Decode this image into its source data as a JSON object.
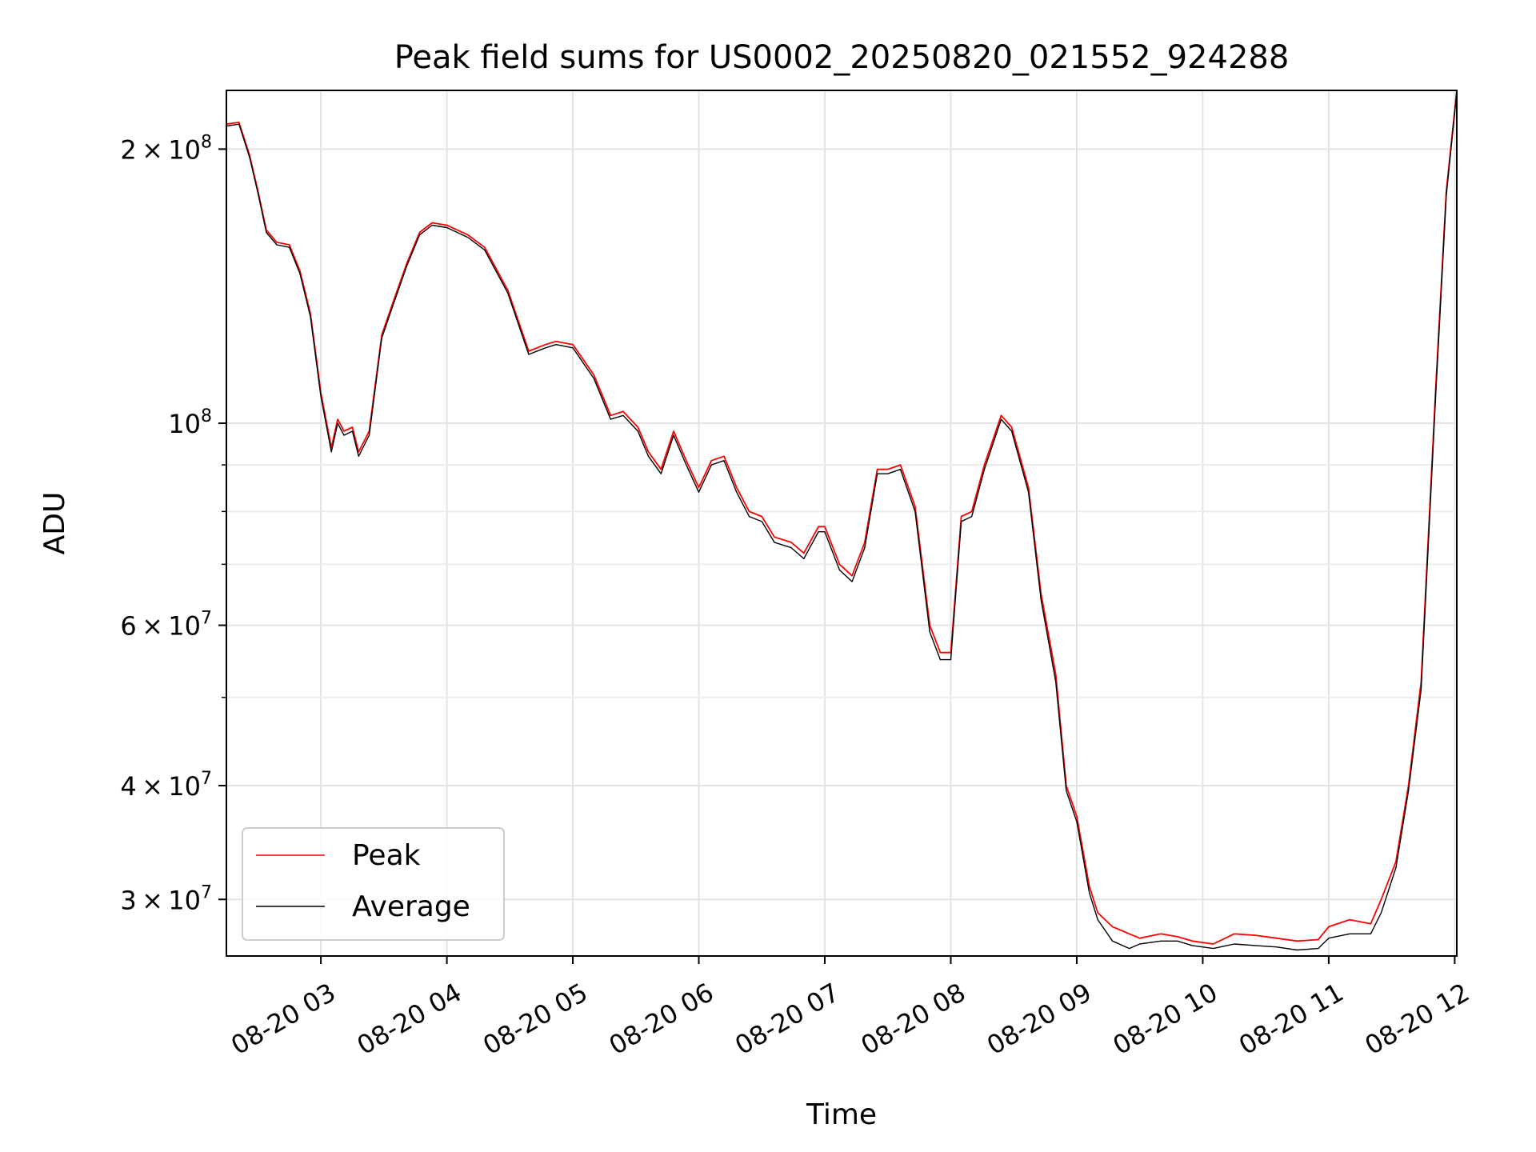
{
  "chart_data": {
    "type": "line",
    "title": "Peak field sums for US0002_20250820_021552_924288",
    "xlabel": "Time",
    "ylabel": "ADU",
    "yscale": "log",
    "xlim": [
      "2025-08-20 02:15",
      "2025-08-20 12:01"
    ],
    "ylim": [
      26000000,
      232000000
    ],
    "grid": true,
    "legend_position": "lower-left",
    "x_tick_labels": [
      "08-20 03",
      "08-20 04",
      "08-20 05",
      "08-20 06",
      "08-20 07",
      "08-20 08",
      "08-20 09",
      "08-20 10",
      "08-20 11",
      "08-20 12"
    ],
    "x_tick_values": [
      "2025-08-20 03:00",
      "2025-08-20 04:00",
      "2025-08-20 05:00",
      "2025-08-20 06:00",
      "2025-08-20 07:00",
      "2025-08-20 08:00",
      "2025-08-20 09:00",
      "2025-08-20 10:00",
      "2025-08-20 11:00",
      "2025-08-20 12:00"
    ],
    "y_ticks": [
      {
        "value": 30000000,
        "mantissa": "3",
        "base": "10",
        "exponent": "7"
      },
      {
        "value": 40000000,
        "mantissa": "4",
        "base": "10",
        "exponent": "7"
      },
      {
        "value": 60000000,
        "mantissa": "6",
        "base": "10",
        "exponent": "7"
      },
      {
        "value": 100000000,
        "mantissa": "",
        "base": "10",
        "exponent": "8"
      },
      {
        "value": 200000000,
        "mantissa": "2",
        "base": "10",
        "exponent": "8"
      }
    ],
    "y_minor_ticks": [
      50000000,
      70000000,
      80000000,
      90000000
    ],
    "series": [
      {
        "name": "Peak",
        "color": "#ff0000",
        "x": [
          "2025-08-20 02:15",
          "2025-08-20 02:21",
          "2025-08-20 02:26",
          "2025-08-20 02:30",
          "2025-08-20 02:34",
          "2025-08-20 02:39",
          "2025-08-20 02:45",
          "2025-08-20 02:50",
          "2025-08-20 02:55",
          "2025-08-20 03:00",
          "2025-08-20 03:05",
          "2025-08-20 03:08",
          "2025-08-20 03:11",
          "2025-08-20 03:15",
          "2025-08-20 03:18",
          "2025-08-20 03:23",
          "2025-08-20 03:29",
          "2025-08-20 03:34",
          "2025-08-20 03:41",
          "2025-08-20 03:47",
          "2025-08-20 03:53",
          "2025-08-20 04:00",
          "2025-08-20 04:10",
          "2025-08-20 04:18",
          "2025-08-20 04:29",
          "2025-08-20 04:39",
          "2025-08-20 04:47",
          "2025-08-20 04:52",
          "2025-08-20 05:00",
          "2025-08-20 05:10",
          "2025-08-20 05:18",
          "2025-08-20 05:24",
          "2025-08-20 05:31",
          "2025-08-20 05:36",
          "2025-08-20 05:42",
          "2025-08-20 05:48",
          "2025-08-20 05:54",
          "2025-08-20 06:00",
          "2025-08-20 06:06",
          "2025-08-20 06:12",
          "2025-08-20 06:18",
          "2025-08-20 06:24",
          "2025-08-20 06:30",
          "2025-08-20 06:36",
          "2025-08-20 06:44",
          "2025-08-20 06:50",
          "2025-08-20 06:57",
          "2025-08-20 07:00",
          "2025-08-20 07:07",
          "2025-08-20 07:13",
          "2025-08-20 07:19",
          "2025-08-20 07:25",
          "2025-08-20 07:30",
          "2025-08-20 07:36",
          "2025-08-20 07:43",
          "2025-08-20 07:50",
          "2025-08-20 07:55",
          "2025-08-20 08:00",
          "2025-08-20 08:05",
          "2025-08-20 08:10",
          "2025-08-20 08:16",
          "2025-08-20 08:24",
          "2025-08-20 08:29",
          "2025-08-20 08:37",
          "2025-08-20 08:43",
          "2025-08-20 08:50",
          "2025-08-20 08:55",
          "2025-08-20 09:00",
          "2025-08-20 09:06",
          "2025-08-20 09:10",
          "2025-08-20 09:17",
          "2025-08-20 09:25",
          "2025-08-20 09:30",
          "2025-08-20 09:40",
          "2025-08-20 09:48",
          "2025-08-20 09:55",
          "2025-08-20 10:05",
          "2025-08-20 10:15",
          "2025-08-20 10:25",
          "2025-08-20 10:35",
          "2025-08-20 10:45",
          "2025-08-20 10:55",
          "2025-08-20 11:00",
          "2025-08-20 11:10",
          "2025-08-20 11:20",
          "2025-08-20 11:25",
          "2025-08-20 11:32",
          "2025-08-20 11:38",
          "2025-08-20 11:44",
          "2025-08-20 11:51",
          "2025-08-20 11:56",
          "2025-08-20 12:01"
        ],
        "values": [
          213000000,
          214000000,
          197000000,
          180000000,
          163000000,
          158000000,
          157000000,
          147000000,
          132000000,
          108000000,
          94000000,
          101000000,
          98000000,
          99000000,
          93000000,
          98000000,
          125000000,
          135000000,
          150000000,
          162000000,
          166000000,
          165000000,
          161000000,
          156000000,
          140000000,
          120000000,
          122000000,
          123000000,
          122000000,
          113000000,
          102000000,
          103000000,
          99000000,
          93000000,
          89000000,
          98000000,
          91000000,
          85000000,
          91000000,
          92000000,
          85000000,
          80000000,
          79000000,
          75000000,
          74000000,
          72000000,
          77000000,
          77000000,
          70000000,
          68000000,
          74000000,
          89000000,
          89000000,
          90000000,
          81000000,
          60000000,
          56000000,
          56000000,
          79000000,
          80000000,
          90000000,
          102000000,
          99000000,
          85000000,
          65000000,
          53000000,
          40000000,
          37000000,
          31000000,
          29000000,
          28000000,
          27500000,
          27200000,
          27500000,
          27300000,
          27000000,
          26800000,
          27500000,
          27400000,
          27200000,
          27000000,
          27100000,
          28000000,
          28500000,
          28200000,
          30000000,
          33000000,
          40000000,
          52000000,
          110000000,
          180000000,
          232000000
        ]
      },
      {
        "name": "Average",
        "color": "#000000",
        "x": [
          "2025-08-20 02:15",
          "2025-08-20 02:21",
          "2025-08-20 02:26",
          "2025-08-20 02:30",
          "2025-08-20 02:34",
          "2025-08-20 02:39",
          "2025-08-20 02:45",
          "2025-08-20 02:50",
          "2025-08-20 02:55",
          "2025-08-20 03:00",
          "2025-08-20 03:05",
          "2025-08-20 03:08",
          "2025-08-20 03:11",
          "2025-08-20 03:15",
          "2025-08-20 03:18",
          "2025-08-20 03:23",
          "2025-08-20 03:29",
          "2025-08-20 03:34",
          "2025-08-20 03:41",
          "2025-08-20 03:47",
          "2025-08-20 03:53",
          "2025-08-20 04:00",
          "2025-08-20 04:10",
          "2025-08-20 04:18",
          "2025-08-20 04:29",
          "2025-08-20 04:39",
          "2025-08-20 04:47",
          "2025-08-20 04:52",
          "2025-08-20 05:00",
          "2025-08-20 05:10",
          "2025-08-20 05:18",
          "2025-08-20 05:24",
          "2025-08-20 05:31",
          "2025-08-20 05:36",
          "2025-08-20 05:42",
          "2025-08-20 05:48",
          "2025-08-20 05:54",
          "2025-08-20 06:00",
          "2025-08-20 06:06",
          "2025-08-20 06:12",
          "2025-08-20 06:18",
          "2025-08-20 06:24",
          "2025-08-20 06:30",
          "2025-08-20 06:36",
          "2025-08-20 06:44",
          "2025-08-20 06:50",
          "2025-08-20 06:57",
          "2025-08-20 07:00",
          "2025-08-20 07:07",
          "2025-08-20 07:13",
          "2025-08-20 07:19",
          "2025-08-20 07:25",
          "2025-08-20 07:30",
          "2025-08-20 07:36",
          "2025-08-20 07:43",
          "2025-08-20 07:50",
          "2025-08-20 07:55",
          "2025-08-20 08:00",
          "2025-08-20 08:05",
          "2025-08-20 08:10",
          "2025-08-20 08:16",
          "2025-08-20 08:24",
          "2025-08-20 08:29",
          "2025-08-20 08:37",
          "2025-08-20 08:43",
          "2025-08-20 08:50",
          "2025-08-20 08:55",
          "2025-08-20 09:00",
          "2025-08-20 09:06",
          "2025-08-20 09:10",
          "2025-08-20 09:17",
          "2025-08-20 09:25",
          "2025-08-20 09:30",
          "2025-08-20 09:40",
          "2025-08-20 09:48",
          "2025-08-20 09:55",
          "2025-08-20 10:05",
          "2025-08-20 10:15",
          "2025-08-20 10:25",
          "2025-08-20 10:35",
          "2025-08-20 10:45",
          "2025-08-20 10:55",
          "2025-08-20 11:00",
          "2025-08-20 11:10",
          "2025-08-20 11:20",
          "2025-08-20 11:25",
          "2025-08-20 11:32",
          "2025-08-20 11:38",
          "2025-08-20 11:44",
          "2025-08-20 11:51",
          "2025-08-20 11:56",
          "2025-08-20 12:01"
        ],
        "values": [
          212000000,
          213000000,
          196000000,
          179000000,
          162000000,
          157000000,
          156000000,
          146000000,
          131000000,
          107000000,
          93000000,
          100000000,
          97000000,
          98000000,
          92000000,
          97000000,
          124000000,
          134000000,
          149000000,
          161000000,
          165000000,
          164000000,
          160000000,
          155000000,
          139000000,
          119000000,
          121000000,
          122000000,
          121000000,
          112000000,
          101000000,
          102000000,
          98000000,
          92000000,
          88000000,
          97000000,
          90000000,
          84000000,
          90000000,
          91000000,
          84000000,
          79000000,
          78000000,
          74000000,
          73000000,
          71000000,
          76000000,
          76000000,
          69000000,
          67000000,
          73000000,
          88000000,
          88000000,
          89000000,
          80000000,
          59000000,
          55000000,
          55000000,
          78000000,
          79000000,
          89000000,
          101000000,
          98000000,
          84000000,
          64000000,
          52000000,
          39500000,
          36500000,
          30500000,
          28500000,
          27000000,
          26500000,
          26800000,
          27000000,
          27000000,
          26700000,
          26500000,
          26800000,
          26700000,
          26600000,
          26400000,
          26500000,
          27200000,
          27500000,
          27500000,
          29000000,
          32500000,
          39500000,
          51000000,
          108000000,
          178000000,
          231000000
        ]
      }
    ]
  }
}
